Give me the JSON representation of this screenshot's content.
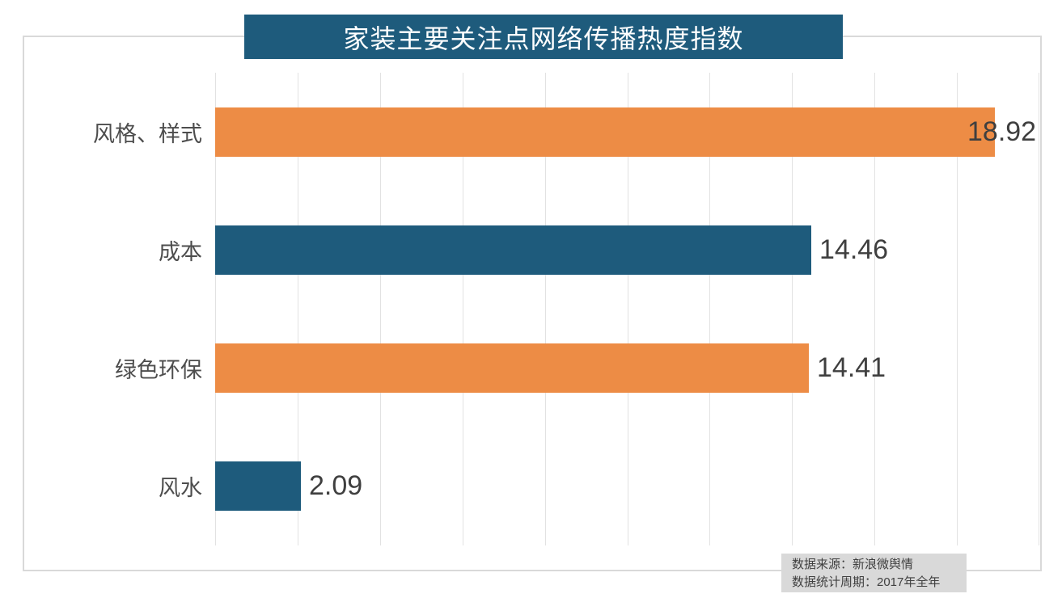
{
  "chart_data": {
    "type": "bar",
    "orientation": "horizontal",
    "title": "家装主要关注点网络传播热度指数",
    "categories": [
      "风格、样式",
      "成本",
      "绿色环保",
      "风水"
    ],
    "values": [
      18.92,
      14.46,
      14.41,
      2.09
    ],
    "value_labels": [
      "18.92",
      "14.46",
      "14.41",
      "2.09"
    ],
    "bar_colors": [
      "#ED8C45",
      "#1E5B7C",
      "#ED8C45",
      "#1E5B7C"
    ],
    "xlim": [
      0,
      20
    ],
    "gridline_step": 2,
    "grid": true,
    "legend_position": "none",
    "xlabel": "",
    "ylabel": ""
  },
  "colors": {
    "title_bg": "#1E5B7C",
    "title_text": "#FFFFFF",
    "bar_orange": "#ED8C45",
    "bar_teal": "#1E5B7C",
    "gridline": "#E2E2E2",
    "border": "#D9D9D9",
    "category_label": "#4D4D4D",
    "value_label": "#3F3F3F",
    "footer_bg": "#D9D9D9",
    "footer_text": "#404040",
    "background": "#FFFFFF"
  },
  "footer": {
    "source_line": "数据来源：新浪微舆情",
    "period_line": "数据统计周期：2017年全年"
  }
}
